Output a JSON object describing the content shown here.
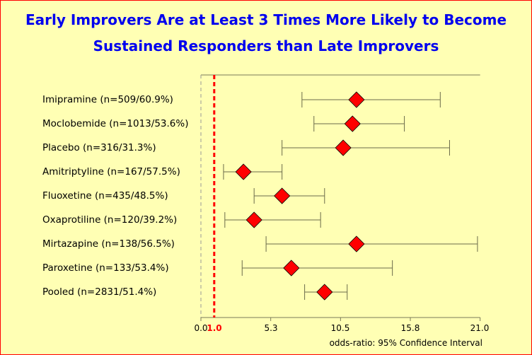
{
  "chart_data": {
    "type": "forest",
    "title": "Early Improvers Are at Least 3 Times More Likely to Become Sustained Responders than Late Improvers",
    "title_lines": [
      "Early Improvers Are at Least 3 Times More Likely to Become",
      "Sustained Responders than Late Improvers"
    ],
    "xlabel": "odds-ratio: 95% Confidence Interval",
    "xlim": [
      0,
      21.0
    ],
    "xticks": [
      "0.0",
      "5.3",
      "10.5",
      "15.8",
      "21.0"
    ],
    "reference_line": {
      "value": 1.0,
      "label": "1.0",
      "color": "#ff0000"
    },
    "marker_color": "#ff0000",
    "title_color": "#0000ee",
    "rows": [
      {
        "label": "Imipramine (n=509/60.9%)",
        "low": 7.6,
        "or": 11.7,
        "high": 18.0
      },
      {
        "label": "Moclobemide (n=1013/53.6%)",
        "low": 8.5,
        "or": 11.4,
        "high": 15.3
      },
      {
        "label": "Placebo (n=316/31.3%)",
        "low": 6.1,
        "or": 10.7,
        "high": 18.7
      },
      {
        "label": "Amitriptyline (n=167/57.5%)",
        "low": 1.7,
        "or": 3.2,
        "high": 6.1
      },
      {
        "label": "Fluoxetine (n=435/48.5%)",
        "low": 4.0,
        "or": 6.1,
        "high": 9.3
      },
      {
        "label": "Oxaprotiline (n=120/39.2%)",
        "low": 1.8,
        "or": 4.0,
        "high": 9.0
      },
      {
        "label": "Mirtazapine (n=138/56.5%)",
        "low": 4.9,
        "or": 11.7,
        "high": 20.8
      },
      {
        "label": "Paroxetine (n=133/53.4%)",
        "low": 3.1,
        "or": 6.8,
        "high": 14.4
      },
      {
        "label": "Pooled (n=2831/51.4%)",
        "low": 7.8,
        "or": 9.3,
        "high": 11.0
      }
    ]
  }
}
